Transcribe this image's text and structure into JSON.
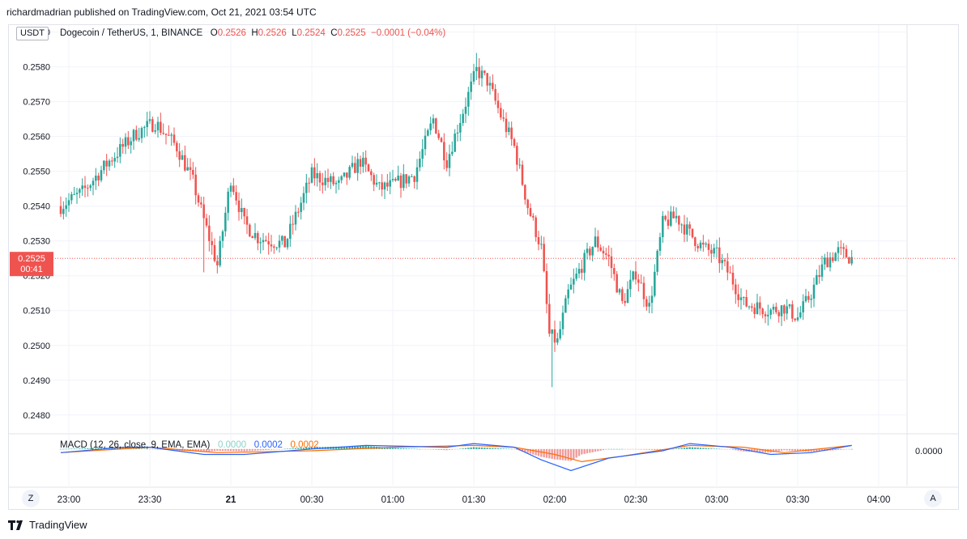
{
  "publisher_text": "richardmadrian published on TradingView.com, Oct 21, 2021 03:54 UTC",
  "currency_badge": "USDT",
  "symbol": {
    "name": "Dogecoin / TetherUS, 1, BINANCE",
    "o_label": "O",
    "o_value": "0.2526",
    "h_label": "H",
    "h_value": "0.2526",
    "l_label": "L",
    "l_value": "0.2524",
    "c_label": "C",
    "c_value": "0.2525",
    "change": "−0.0001 (−0.04%)"
  },
  "price_tag": {
    "price": "0.2525",
    "countdown": "00:41"
  },
  "macd_legend": {
    "label": "MACD (12, 26, close, 9, EMA, EMA)",
    "hist": "0.0000",
    "macd": "0.0002",
    "signal": "0.0002"
  },
  "macd_axis_label": "0.0000",
  "buttons": {
    "z": "Z",
    "a": "A"
  },
  "brand": "TradingView",
  "colors": {
    "up": "#26a69a",
    "down": "#ef5350",
    "macd": "#2962ff",
    "signal": "#ff6d00",
    "grid": "#f0f3fa"
  },
  "chart_data": {
    "type": "candlestick",
    "title": "Dogecoin / TetherUS, 1, BINANCE",
    "interval": "1 minute",
    "x_ticks": [
      "23:00",
      "23:30",
      "21",
      "00:30",
      "01:00",
      "01:30",
      "02:00",
      "02:30",
      "03:00",
      "03:30",
      "04:00"
    ],
    "y_ticks": [
      "0.2480",
      "0.2490",
      "0.2500",
      "0.2510",
      "0.2520",
      "0.2530",
      "0.2540",
      "0.2550",
      "0.2560",
      "0.2570",
      "0.2580",
      "0.2590"
    ],
    "ylim": [
      0.2476,
      0.2592
    ],
    "current_price": 0.2525,
    "close_path": [
      [
        "22:57",
        0.254
      ],
      [
        "23:05",
        0.2544
      ],
      [
        "23:15",
        0.2553
      ],
      [
        "23:25",
        0.2561
      ],
      [
        "23:32",
        0.2564
      ],
      [
        "23:40",
        0.2557
      ],
      [
        "23:46",
        0.2547
      ],
      [
        "23:50",
        0.2536
      ],
      [
        "23:55",
        0.2523
      ],
      [
        "00:00",
        0.2548
      ],
      [
        "00:05",
        0.2535
      ],
      [
        "00:10",
        0.2531
      ],
      [
        "00:15",
        0.253
      ],
      [
        "00:20",
        0.2529
      ],
      [
        "00:30",
        0.2549
      ],
      [
        "00:40",
        0.2546
      ],
      [
        "00:48",
        0.2553
      ],
      [
        "00:55",
        0.2545
      ],
      [
        "01:00",
        0.2546
      ],
      [
        "01:08",
        0.2549
      ],
      [
        "01:15",
        0.2565
      ],
      [
        "01:20",
        0.2553
      ],
      [
        "01:25",
        0.2565
      ],
      [
        "01:31",
        0.2579
      ],
      [
        "01:35",
        0.2576
      ],
      [
        "01:40",
        0.2566
      ],
      [
        "01:45",
        0.2557
      ],
      [
        "01:50",
        0.254
      ],
      [
        "01:55",
        0.2528
      ],
      [
        "01:58",
        0.2503
      ],
      [
        "02:01",
        0.2501
      ],
      [
        "02:05",
        0.2515
      ],
      [
        "02:10",
        0.2523
      ],
      [
        "02:15",
        0.253
      ],
      [
        "02:20",
        0.2525
      ],
      [
        "02:25",
        0.2512
      ],
      [
        "02:30",
        0.2521
      ],
      [
        "02:35",
        0.2511
      ],
      [
        "02:40",
        0.2535
      ],
      [
        "02:45",
        0.2537
      ],
      [
        "02:50",
        0.2532
      ],
      [
        "02:55",
        0.2528
      ],
      [
        "03:00",
        0.2526
      ],
      [
        "03:05",
        0.252
      ],
      [
        "03:10",
        0.2512
      ],
      [
        "03:15",
        0.2511
      ],
      [
        "03:20",
        0.251
      ],
      [
        "03:25",
        0.2511
      ],
      [
        "03:30",
        0.2508
      ],
      [
        "03:35",
        0.2515
      ],
      [
        "03:40",
        0.2524
      ],
      [
        "03:45",
        0.2527
      ],
      [
        "03:50",
        0.2525
      ]
    ],
    "spikes": [
      {
        "time": "23:50",
        "low": 0.2521
      },
      {
        "time": "01:31",
        "high": 0.2584
      },
      {
        "time": "01:59",
        "low": 0.2488
      }
    ],
    "macd": {
      "ylim": [
        -0.0014,
        0.0008
      ],
      "macd_path": [
        [
          "22:57",
          -0.0002
        ],
        [
          "23:20",
          0.0001
        ],
        [
          "23:30",
          0.0001
        ],
        [
          "23:50",
          -0.0003
        ],
        [
          "00:05",
          -0.0003
        ],
        [
          "00:30",
          0.0
        ],
        [
          "00:50",
          0.0002
        ],
        [
          "01:20",
          0.0001
        ],
        [
          "01:30",
          0.0003
        ],
        [
          "01:45",
          0.0001
        ],
        [
          "01:55",
          -0.0006
        ],
        [
          "02:06",
          -0.0012
        ],
        [
          "02:20",
          -0.0005
        ],
        [
          "02:40",
          -0.0001
        ],
        [
          "02:50",
          0.0003
        ],
        [
          "03:05",
          0.0001
        ],
        [
          "03:20",
          -0.0003
        ],
        [
          "03:35",
          -0.0002
        ],
        [
          "03:50",
          0.0002
        ]
      ],
      "signal_path": [
        [
          "22:57",
          -0.0002
        ],
        [
          "23:30",
          0.0001
        ],
        [
          "23:55",
          -0.0002
        ],
        [
          "00:30",
          -0.0001
        ],
        [
          "01:00",
          0.0001
        ],
        [
          "01:30",
          0.0002
        ],
        [
          "01:45",
          0.0001
        ],
        [
          "02:00",
          -0.0003
        ],
        [
          "02:10",
          -0.0007
        ],
        [
          "02:25",
          -0.0004
        ],
        [
          "02:50",
          0.0002
        ],
        [
          "03:10",
          0.0001
        ],
        [
          "03:25",
          -0.0002
        ],
        [
          "03:50",
          0.0002
        ]
      ]
    }
  }
}
